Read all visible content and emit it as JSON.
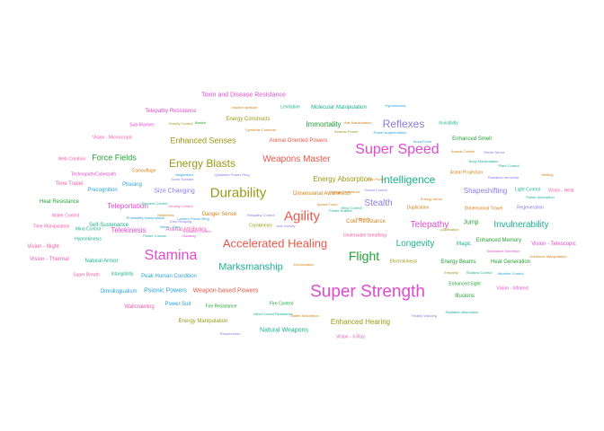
{
  "palette": {
    "red": "#e8584a",
    "olive": "#9a9a16",
    "green": "#23a336",
    "teal": "#1ab28e",
    "blue": "#2aa3d8",
    "purple": "#8d79e6",
    "magenta": "#e04bd0",
    "pink": "#ef5aa8",
    "orange": "#d08318"
  },
  "words": [
    {
      "text": "Super Strength",
      "color": "magenta"
    },
    {
      "text": "Super Speed",
      "color": "magenta"
    },
    {
      "text": "Stamina",
      "color": "magenta"
    },
    {
      "text": "Durability",
      "color": "olive"
    },
    {
      "text": "Agility",
      "color": "red"
    },
    {
      "text": "Accelerated Healing",
      "color": "red"
    },
    {
      "text": "Flight",
      "color": "green"
    },
    {
      "text": "Reflexes",
      "color": "purple"
    },
    {
      "text": "Intelligence",
      "color": "teal"
    },
    {
      "text": "Energy Blasts",
      "color": "olive"
    },
    {
      "text": "Marksmanship",
      "color": "teal"
    },
    {
      "text": "Weapons Master",
      "color": "red"
    },
    {
      "text": "Longevity",
      "color": "teal"
    },
    {
      "text": "Invulnerability",
      "color": "teal"
    },
    {
      "text": "Stealth",
      "color": "purple"
    },
    {
      "text": "Enhanced Senses",
      "color": "olive"
    },
    {
      "text": "Force Fields",
      "color": "green"
    },
    {
      "text": "Telepathy",
      "color": "magenta"
    },
    {
      "text": "Energy Absorption",
      "color": "olive"
    },
    {
      "text": "Immortality",
      "color": "green"
    },
    {
      "text": "Shapeshifting",
      "color": "purple"
    },
    {
      "text": "Size Changing",
      "color": "purple"
    },
    {
      "text": "Teleportation",
      "color": "magenta"
    },
    {
      "text": "Telekinesis",
      "color": "magenta"
    },
    {
      "text": "Enhanced Hearing",
      "color": "olive"
    },
    {
      "text": "Natural Weapons",
      "color": "teal"
    },
    {
      "text": "Jump",
      "color": "green"
    },
    {
      "text": "Magic",
      "color": "teal"
    },
    {
      "text": "Psionic Powers",
      "color": "blue"
    },
    {
      "text": "Weapon-based Powers",
      "color": "red"
    },
    {
      "text": "Energy Manipulation",
      "color": "olive"
    },
    {
      "text": "Toxin and Disease Resistance",
      "color": "magenta"
    },
    {
      "text": "Molecular Manipulation",
      "color": "teal"
    },
    {
      "text": "Cold Resistance",
      "color": "orange"
    },
    {
      "text": "Vision - Telescopic",
      "color": "magenta"
    },
    {
      "text": "Self-Sustenance",
      "color": "teal"
    },
    {
      "text": "Enhanced Memory",
      "color": "green"
    },
    {
      "text": "Energy Beams",
      "color": "green"
    },
    {
      "text": "Heat Generation",
      "color": "green"
    },
    {
      "text": "Illusions",
      "color": "green"
    },
    {
      "text": "Enhanced Smell",
      "color": "green"
    },
    {
      "text": "Telepathy Resistance",
      "color": "magenta"
    },
    {
      "text": "Energy Constructs",
      "color": "olive"
    },
    {
      "text": "Animal Oriented Powers",
      "color": "red"
    },
    {
      "text": "Dimensional Awareness",
      "color": "orange"
    },
    {
      "text": "Time Travel",
      "color": "pink"
    },
    {
      "text": "Heat Resistance",
      "color": "green"
    },
    {
      "text": "Phasing",
      "color": "blue"
    },
    {
      "text": "Precognition",
      "color": "blue"
    },
    {
      "text": "Natural Armor",
      "color": "teal"
    },
    {
      "text": "Vision - Night",
      "color": "pink"
    },
    {
      "text": "Vision - Thermal",
      "color": "pink"
    },
    {
      "text": "Power Suit",
      "color": "blue"
    },
    {
      "text": "Wallcrawling",
      "color": "pink"
    },
    {
      "text": "Omnilingualism",
      "color": "blue"
    },
    {
      "text": "Peak Human Condition",
      "color": "blue"
    },
    {
      "text": "Danger Sense",
      "color": "orange"
    },
    {
      "text": "Animal Attributes",
      "color": "pink"
    },
    {
      "text": "Levitation",
      "color": "teal"
    },
    {
      "text": "Dimensional Travel",
      "color": "orange"
    },
    {
      "text": "Regeneration",
      "color": "purple"
    },
    {
      "text": "Astral Projection",
      "color": "orange"
    },
    {
      "text": "Electrokinesis",
      "color": "olive"
    },
    {
      "text": "Fire Control",
      "color": "green"
    },
    {
      "text": "Enhanced Sight",
      "color": "green"
    },
    {
      "text": "Vision - X-Ray",
      "color": "pink"
    },
    {
      "text": "Mind Control",
      "color": "teal"
    },
    {
      "text": "Hypnokinesis",
      "color": "teal"
    },
    {
      "text": "Intangibility",
      "color": "teal"
    },
    {
      "text": "Super Breath",
      "color": "pink"
    },
    {
      "text": "Vision - Infrared",
      "color": "magenta"
    },
    {
      "text": "Fire Resistance",
      "color": "green"
    },
    {
      "text": "Vision - Heat",
      "color": "pink"
    },
    {
      "text": "Time Manipulation",
      "color": "pink"
    },
    {
      "text": "Water Control",
      "color": "pink"
    },
    {
      "text": "Sub-Mariner",
      "color": "magenta"
    },
    {
      "text": "Gravity Control",
      "color": "olive"
    },
    {
      "text": "Underwater breathing",
      "color": "pink"
    },
    {
      "text": "Light Control",
      "color": "teal"
    },
    {
      "text": "Cryokinesis",
      "color": "olive"
    },
    {
      "text": "Technopath/Cyberpath",
      "color": "magenta"
    },
    {
      "text": "Vision - Microscopic",
      "color": "pink"
    },
    {
      "text": "Web Creation",
      "color": "pink"
    },
    {
      "text": "Invisibility",
      "color": "teal"
    },
    {
      "text": "Camouflage",
      "color": "orange"
    },
    {
      "text": "Duplication",
      "color": "orange"
    },
    {
      "text": "Density Control",
      "color": "pink"
    },
    {
      "text": "Radiation Immunity",
      "color": "purple"
    },
    {
      "text": "Power Absorption",
      "color": "teal"
    },
    {
      "text": "Substance Secretion",
      "color": "magenta"
    },
    {
      "text": "Mind Control Resistance",
      "color": "teal"
    },
    {
      "text": "Reality Warping",
      "color": "purple"
    },
    {
      "text": "Resurrection",
      "color": "purple"
    },
    {
      "text": "Radiation Absorption",
      "color": "teal"
    },
    {
      "text": "Energy Armor",
      "color": "orange"
    },
    {
      "text": "Sonic Scream",
      "color": "purple"
    },
    {
      "text": "Empathy",
      "color": "olive"
    },
    {
      "text": "Animal Control",
      "color": "orange"
    },
    {
      "text": "Plant Control",
      "color": "teal"
    },
    {
      "text": "Matter Absorption",
      "color": "orange"
    },
    {
      "text": "Weather Control",
      "color": "blue"
    },
    {
      "text": "Radar Sense",
      "color": "purple"
    },
    {
      "text": "Magnetism",
      "color": "blue"
    },
    {
      "text": "Shadow Control",
      "color": "teal"
    },
    {
      "text": "Echolocation",
      "color": "orange"
    },
    {
      "text": "Body Manipulation",
      "color": "teal"
    },
    {
      "text": "Telepathy Control",
      "color": "purple"
    },
    {
      "text": "Radiation Control",
      "color": "magenta"
    },
    {
      "text": "Darkforce Manipulation",
      "color": "orange"
    },
    {
      "text": "Lantern Power Ring",
      "color": "blue"
    },
    {
      "text": "Hair Manipulation",
      "color": "orange"
    },
    {
      "text": "Element Control",
      "color": "teal"
    },
    {
      "text": "Power Nullifier",
      "color": "teal"
    },
    {
      "text": "Probability Manipulation",
      "color": "blue"
    },
    {
      "text": "Energy Resistance",
      "color": "orange"
    },
    {
      "text": "Intuitive aptitude",
      "color": "orange"
    },
    {
      "text": "Sound Control",
      "color": "purple"
    },
    {
      "text": "Power Augmentation",
      "color": "blue"
    },
    {
      "text": "Qwardian Power Ring",
      "color": "purple"
    },
    {
      "text": "Nova Force",
      "color": "blue"
    },
    {
      "text": "Melting",
      "color": "orange"
    },
    {
      "text": "Vitakinesis",
      "color": "orange"
    },
    {
      "text": "Symbiote Costume",
      "color": "orange"
    },
    {
      "text": "Banish",
      "color": "green"
    },
    {
      "text": "Seismic Power",
      "color": "olive"
    },
    {
      "text": "Wind Control",
      "color": "teal"
    },
    {
      "text": "Power Cosmic",
      "color": "teal"
    },
    {
      "text": "Grim Reaping",
      "color": "purple"
    },
    {
      "text": "Anti-Gravity",
      "color": "purple"
    },
    {
      "text": "Speed Force",
      "color": "orange"
    },
    {
      "text": "Odin Force",
      "color": "orange"
    },
    {
      "text": "Elasticity",
      "color": "orange"
    },
    {
      "text": "Vision - Cryo",
      "color": "blue"
    },
    {
      "text": "Cloaking",
      "color": "magenta"
    },
    {
      "text": "Hyperkinesis",
      "color": "blue"
    },
    {
      "text": "Liquification",
      "color": "olive"
    },
    {
      "text": "Toxikinesis",
      "color": "orange"
    },
    {
      "text": "Biokinesis",
      "color": "olive"
    },
    {
      "text": "Weather Control",
      "color": "blue"
    },
    {
      "text": "Omnitrix",
      "color": "blue"
    },
    {
      "text": "Omnipresent",
      "color": "orange"
    }
  ]
}
